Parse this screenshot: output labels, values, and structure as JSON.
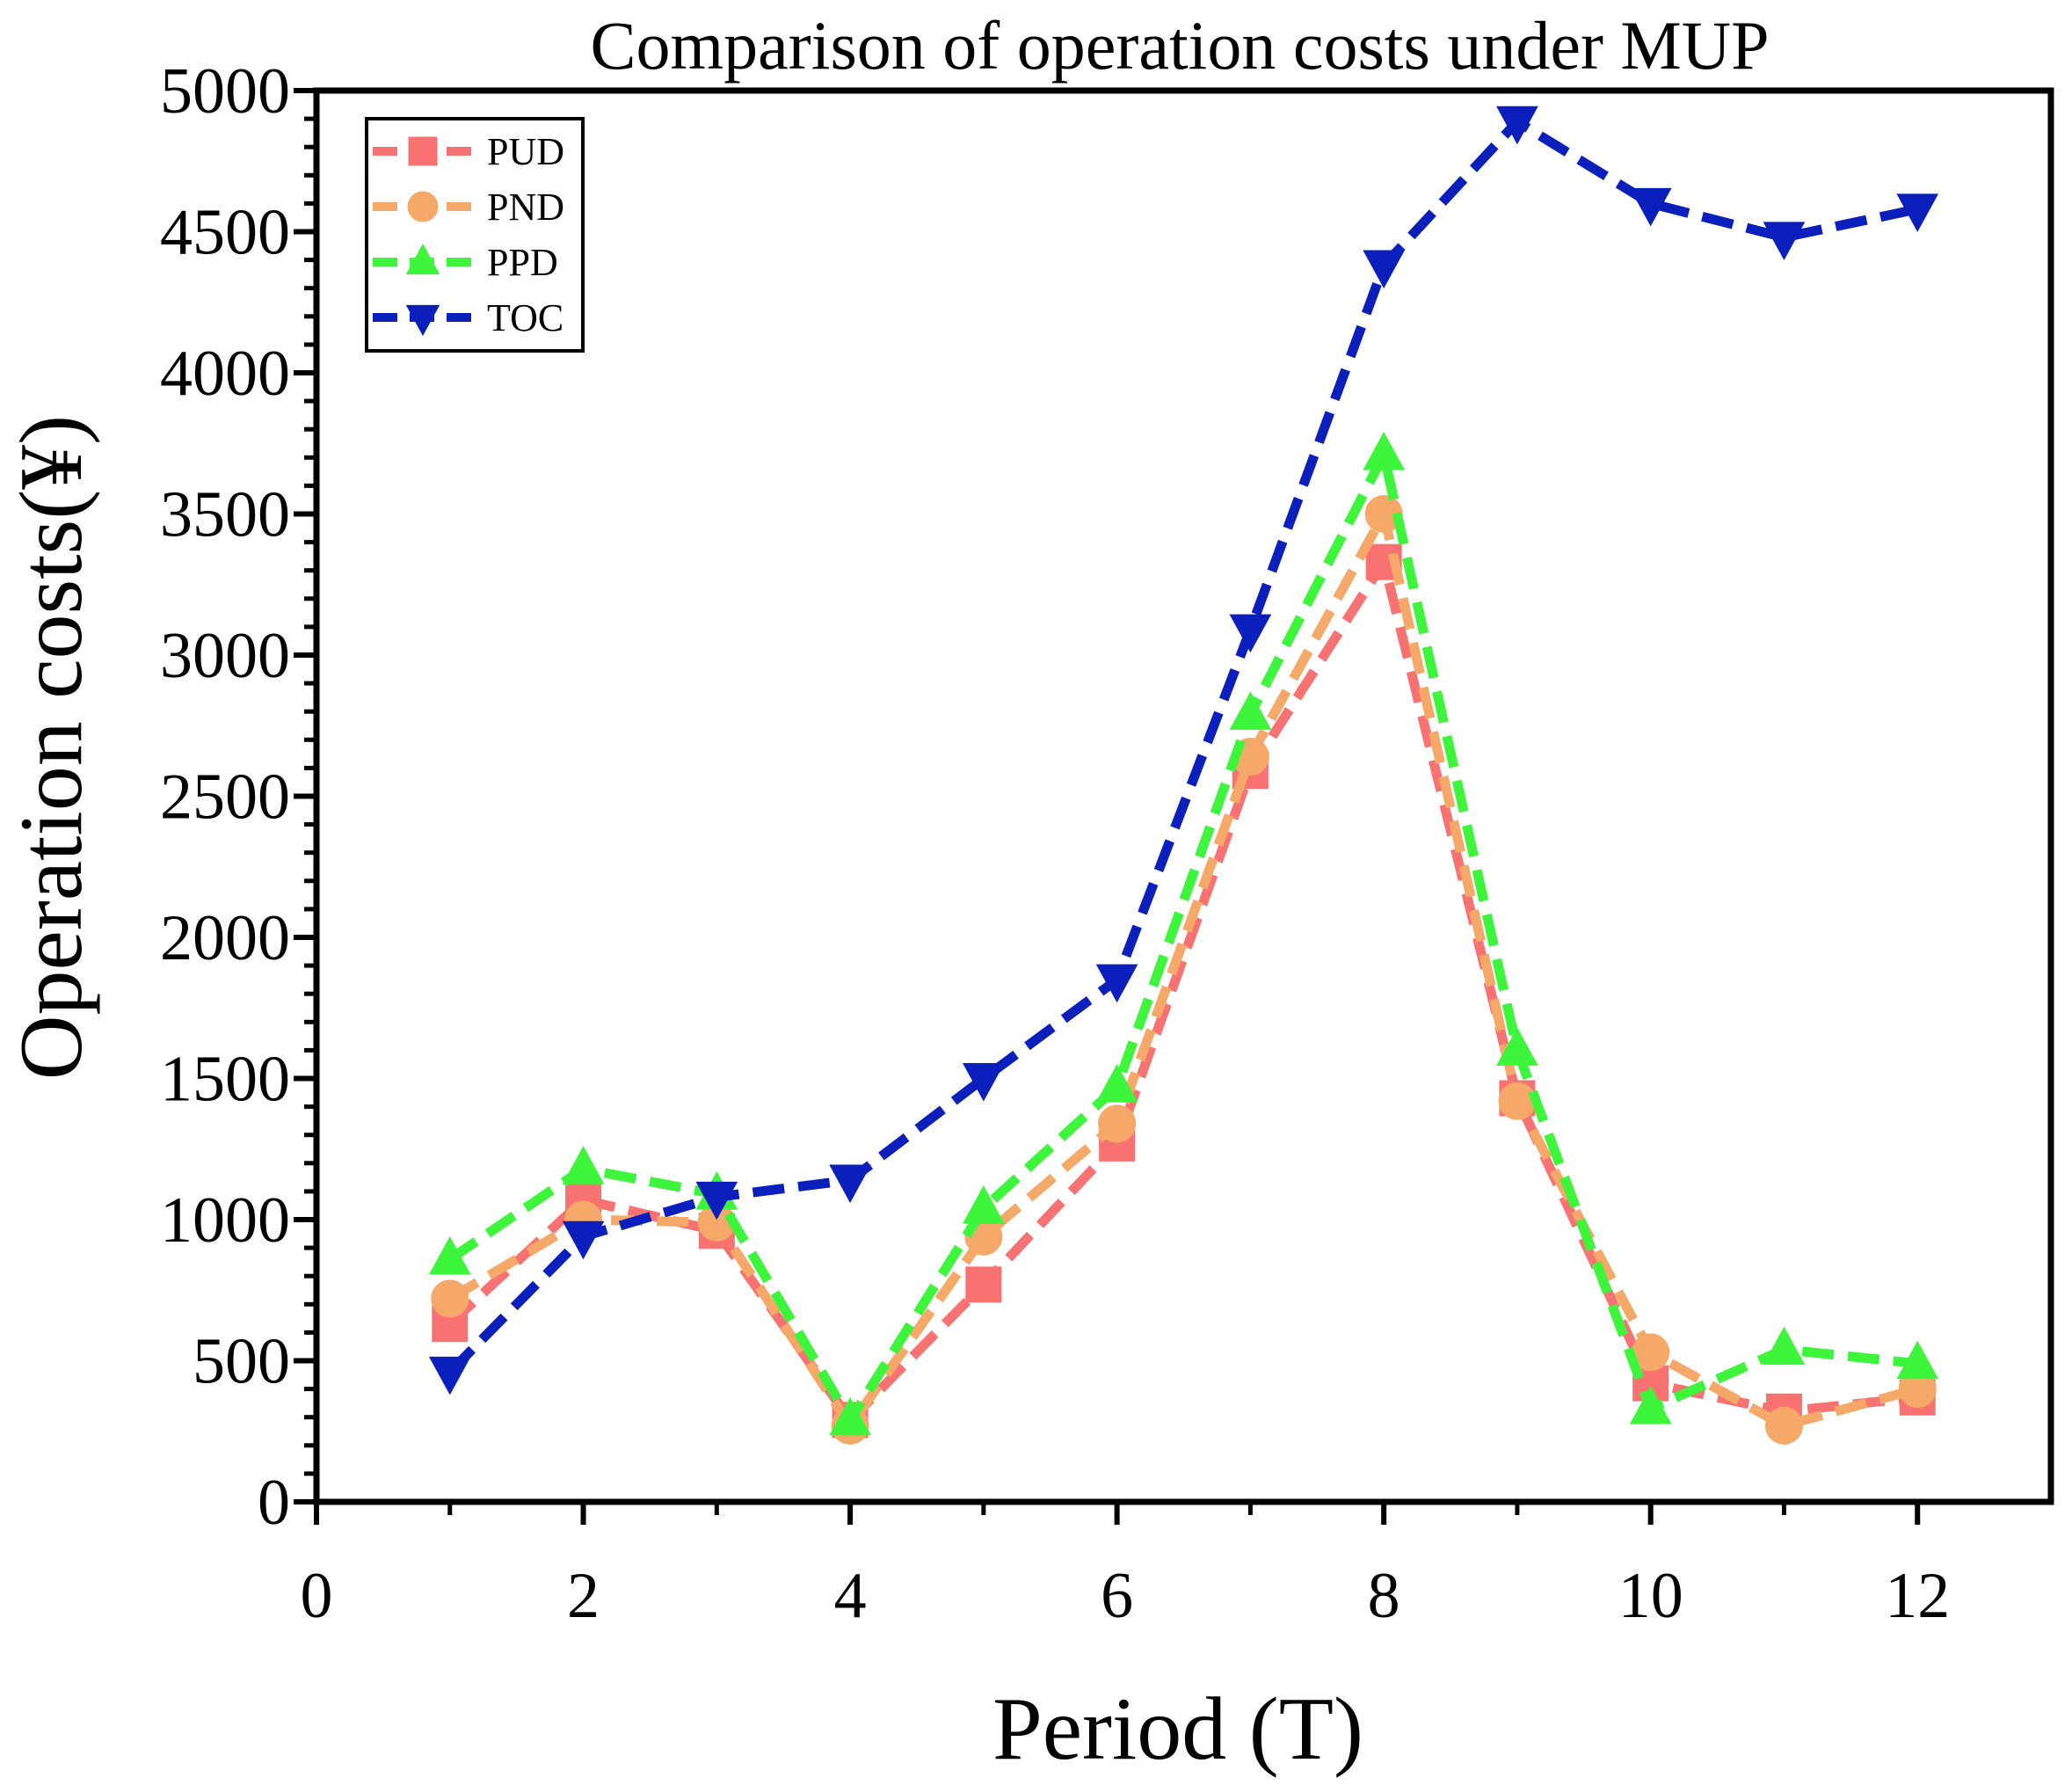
{
  "chart_data": {
    "type": "line",
    "title": "Comparison of operation costs under MUP",
    "xlabel": "Period (T)",
    "ylabel": "Operation costs(¥)",
    "xlim": [
      0,
      13
    ],
    "ylim": [
      0,
      5000
    ],
    "xticks": [
      0,
      2,
      4,
      6,
      8,
      10,
      12
    ],
    "xtick_labels": [
      "0",
      "2",
      "4",
      "6",
      "8",
      "10",
      "12"
    ],
    "yticks": [
      0,
      500,
      1000,
      1500,
      2000,
      2500,
      3000,
      3500,
      4000,
      4500,
      5000
    ],
    "ytick_labels": [
      "0",
      "500",
      "1000",
      "1500",
      "2000",
      "2500",
      "3000",
      "3500",
      "4000",
      "4500",
      "5000"
    ],
    "grid": false,
    "legend_position": "top-left",
    "x": [
      1,
      2,
      3,
      4,
      5,
      6,
      7,
      8,
      9,
      10,
      11,
      12
    ],
    "series": [
      {
        "name": "PUD",
        "marker": "square",
        "line_style": "dashed",
        "color": "#F87272",
        "values": [
          630,
          1070,
          960,
          290,
          770,
          1270,
          2590,
          3330,
          1430,
          420,
          320,
          370
        ]
      },
      {
        "name": "PND",
        "marker": "circle",
        "line_style": "dashed",
        "color": "#F6A868",
        "values": [
          720,
          1000,
          990,
          270,
          940,
          1340,
          2640,
          3500,
          1420,
          530,
          270,
          400
        ]
      },
      {
        "name": "PPD",
        "marker": "triangle-up",
        "line_style": "dashed",
        "color": "#3DF53A",
        "values": [
          860,
          1180,
          1090,
          290,
          1040,
          1470,
          2790,
          3710,
          1600,
          330,
          540,
          490
        ]
      },
      {
        "name": "TOC",
        "marker": "triangle-down",
        "line_style": "dashed",
        "color": "#0A1FBC",
        "values": [
          460,
          940,
          1080,
          1140,
          1500,
          1850,
          3090,
          4380,
          4890,
          4600,
          4480,
          4580
        ]
      }
    ]
  }
}
